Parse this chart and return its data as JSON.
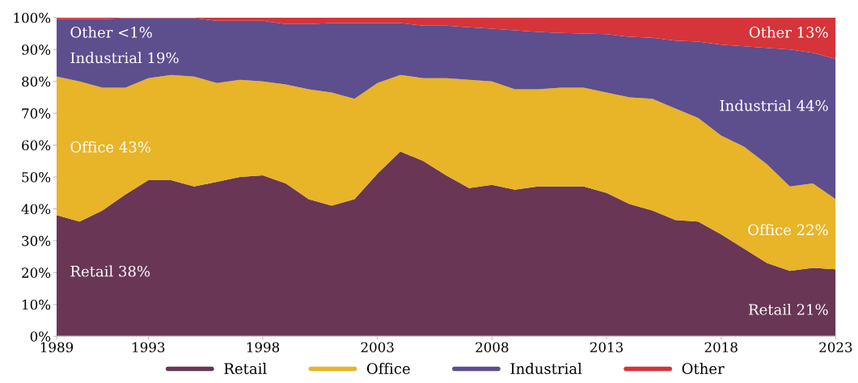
{
  "chart_data": {
    "type": "area",
    "stacked": true,
    "x": [
      1989,
      1990,
      1991,
      1992,
      1993,
      1994,
      1995,
      1996,
      1997,
      1998,
      1999,
      2000,
      2001,
      2002,
      2003,
      2004,
      2005,
      2006,
      2007,
      2008,
      2009,
      2010,
      2011,
      2012,
      2013,
      2014,
      2015,
      2016,
      2017,
      2018,
      2019,
      2020,
      2021,
      2022,
      2023
    ],
    "series": [
      {
        "name": "Retail",
        "color": "#693656",
        "values": [
          38,
          36,
          39.5,
          44.5,
          49,
          49,
          47,
          48.5,
          50,
          50.5,
          48,
          43,
          41,
          43,
          51,
          58,
          55,
          50.5,
          46.5,
          47.5,
          46,
          47,
          47,
          47,
          45,
          41.5,
          39.5,
          36.5,
          36,
          32,
          27.5,
          23,
          20.5,
          21.5,
          21
        ]
      },
      {
        "name": "Office",
        "color": "#e8b428",
        "values": [
          43.5,
          44,
          38.5,
          33.5,
          32,
          33,
          34.5,
          31,
          30.5,
          29.5,
          31,
          34.5,
          35.5,
          31.5,
          28.5,
          24,
          26,
          30.5,
          34,
          32.5,
          31.5,
          30.5,
          31,
          31,
          31.5,
          33.5,
          35,
          35,
          32.5,
          31,
          32,
          31,
          26.5,
          26.5,
          22
        ]
      },
      {
        "name": "Industrial",
        "color": "#5d4e8e",
        "values": [
          18,
          19.5,
          21.5,
          21.8,
          18.8,
          17.8,
          18.3,
          19.5,
          18.5,
          19,
          19,
          20.5,
          21.8,
          23.8,
          18.8,
          16.3,
          16.5,
          16.5,
          16.5,
          16.5,
          18.5,
          18,
          17.2,
          17,
          18.3,
          19,
          19.2,
          21.3,
          24,
          28.5,
          31.5,
          36.5,
          43,
          41,
          44
        ]
      },
      {
        "name": "Other",
        "color": "#d5343a",
        "values": [
          0.5,
          0.5,
          0.5,
          0.2,
          0.2,
          0.2,
          0.2,
          1,
          1,
          1,
          2,
          2,
          1.7,
          1.7,
          1.7,
          1.7,
          2.5,
          2.5,
          3,
          3.5,
          4,
          4.5,
          4.8,
          5,
          5.2,
          6,
          6.3,
          7.2,
          7.5,
          8.5,
          9,
          9.5,
          10,
          11,
          13
        ]
      }
    ],
    "xlim": [
      1989,
      2023
    ],
    "ylim": [
      0,
      100
    ],
    "xticks": [
      1989,
      1993,
      1998,
      2003,
      2008,
      2013,
      2018,
      2023
    ],
    "yticks": [
      {
        "value": 0,
        "label": "0%"
      },
      {
        "value": 10,
        "label": "10%"
      },
      {
        "value": 20,
        "label": "20%"
      },
      {
        "value": 30,
        "label": "30%"
      },
      {
        "value": 40,
        "label": "40%"
      },
      {
        "value": 50,
        "label": "50%"
      },
      {
        "value": 60,
        "label": "60%"
      },
      {
        "value": 70,
        "label": "70%"
      },
      {
        "value": 80,
        "label": "80%"
      },
      {
        "value": 90,
        "label": "90%"
      },
      {
        "value": 100,
        "label": "100%"
      }
    ],
    "annotations": [
      "Other <1%",
      "Industrial 19%",
      "Office 43%",
      "Retail 38%",
      "Other 13%",
      "Industrial 44%",
      "Office 22%",
      "Retail 21%"
    ],
    "legend": "bottom",
    "grid": false
  }
}
